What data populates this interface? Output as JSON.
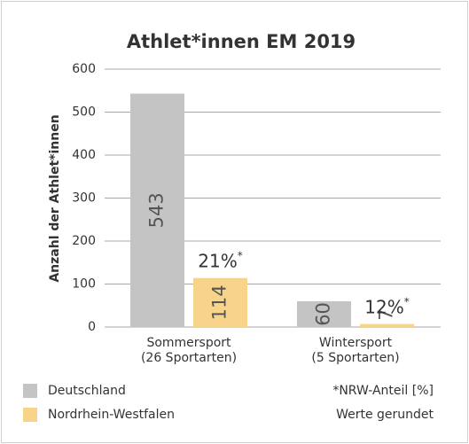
{
  "chart_data": {
    "type": "bar",
    "title": "Athlet*innen EM 2019",
    "y_label": "Anzahl der Athlet*innen",
    "categories": [
      "Sommersport",
      "Wintersport"
    ],
    "category_notes": [
      "(26 Sportarten)",
      "(5 Sportarten)"
    ],
    "series": [
      {
        "name": "Deutschland",
        "color": "#c4c4c4",
        "values": [
          543,
          60
        ]
      },
      {
        "name": "Nordrhein-Westfalen",
        "color": "#f8d48a",
        "values": [
          114,
          7
        ]
      }
    ],
    "annotations": [
      {
        "text": "21%",
        "sup": "*"
      },
      {
        "text": "12%",
        "sup": "*"
      }
    ],
    "notes": [
      "*NRW-Anteil [%]",
      "Werte gerundet"
    ],
    "ylim": [
      0,
      600
    ],
    "yticks": [
      0,
      100,
      200,
      300,
      400,
      500,
      600
    ],
    "grid": true
  }
}
